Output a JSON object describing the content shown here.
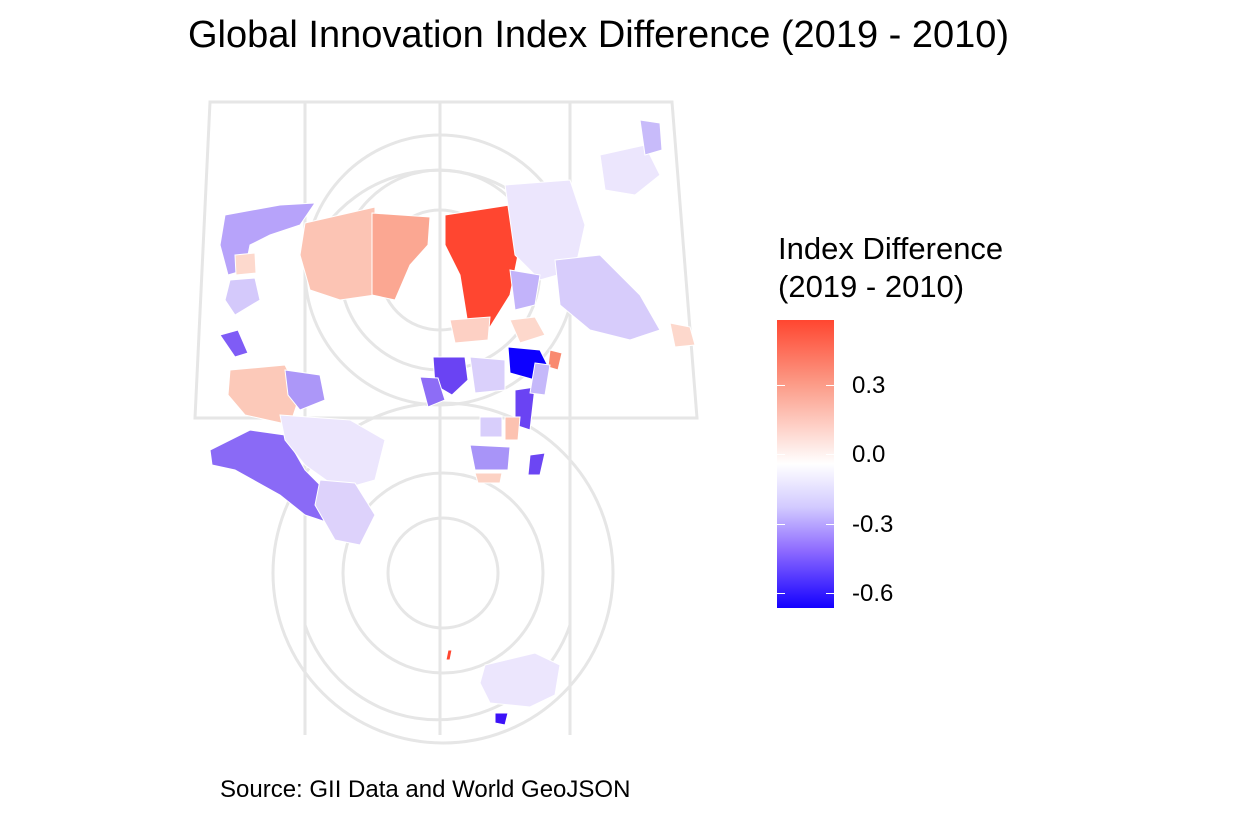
{
  "title": "Global Innovation Index Difference (2019 - 2010)",
  "caption": "Source: GII Data and World GeoJSON",
  "legend": {
    "title_line1": "Index Difference",
    "title_line2": "(2019 - 2010)",
    "ticks": [
      "0.3",
      "0.0",
      "-0.3",
      "-0.6"
    ],
    "colors": {
      "high": "#ff4630",
      "mid": "#ffffff",
      "low": "#1400ff"
    }
  },
  "map": {
    "graticule_color": "#e6e6e6",
    "country_border_color": "#ffffff"
  }
}
